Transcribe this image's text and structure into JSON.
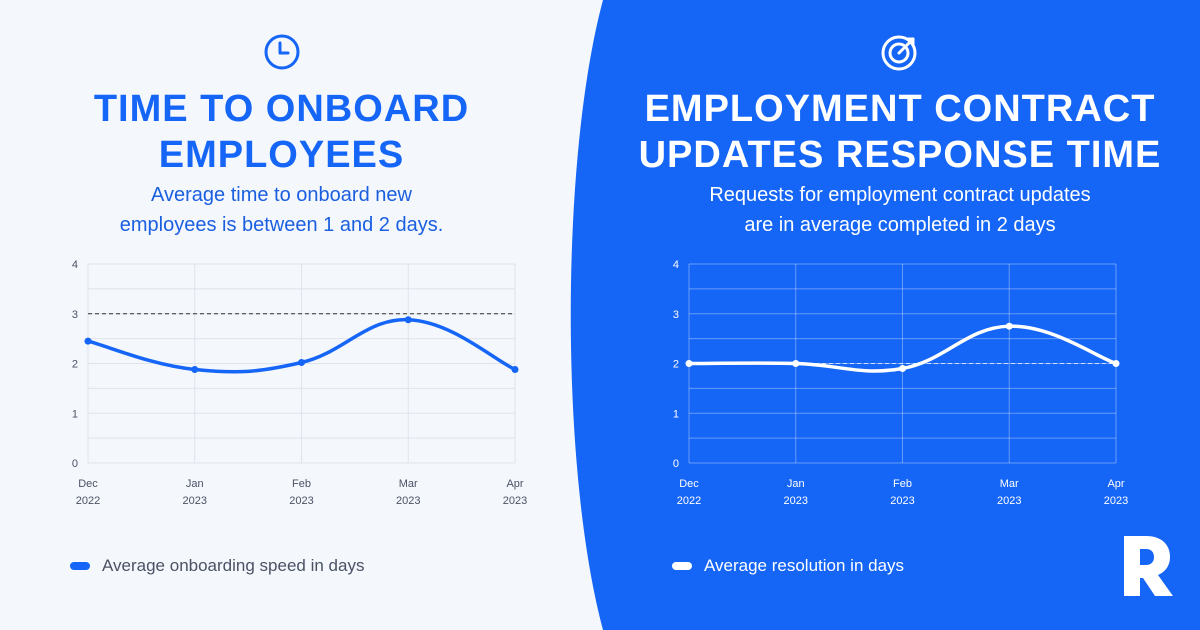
{
  "colors": {
    "brand": "#1565f6",
    "background": "#f4f7fc",
    "white": "#ffffff"
  },
  "left": {
    "icon": "clock-icon",
    "title_line1": "TIME TO ONBOARD",
    "title_line2": "EMPLOYEES",
    "subtitle_line1": "Average time to onboard new",
    "subtitle_line2": "employees is between 1 and 2 days.",
    "legend": "Average onboarding speed in days"
  },
  "right": {
    "icon": "target-icon",
    "title_line1": "EMPLOYMENT CONTRACT",
    "title_line2": "UPDATES RESPONSE TIME",
    "subtitle_line1": "Requests for employment contract updates",
    "subtitle_line2": "are in average completed in 2 days",
    "legend": "Average resolution in days"
  },
  "logo": "r-logo-icon",
  "chart_data": [
    {
      "type": "line",
      "categories": [
        [
          "Dec",
          "2022"
        ],
        [
          "Jan",
          "2023"
        ],
        [
          "Feb",
          "2023"
        ],
        [
          "Mar",
          "2023"
        ],
        [
          "Apr",
          "2023"
        ]
      ],
      "series": [
        {
          "name": "Average onboarding speed in days",
          "values": [
            2.45,
            1.88,
            2.02,
            2.88,
            1.88
          ]
        }
      ],
      "reference_line": 3,
      "ylim": [
        0,
        4
      ],
      "yticks": [
        "0",
        "1",
        "2",
        "3",
        "4"
      ],
      "grid": true,
      "smooth": true,
      "legend_position": "bottom-left",
      "color": "#1565f6"
    },
    {
      "type": "line",
      "categories": [
        [
          "Dec",
          "2022"
        ],
        [
          "Jan",
          "2023"
        ],
        [
          "Feb",
          "2023"
        ],
        [
          "Mar",
          "2023"
        ],
        [
          "Apr",
          "2023"
        ]
      ],
      "series": [
        {
          "name": "Average resolution in days",
          "values": [
            2.0,
            2.0,
            1.9,
            2.75,
            2.0
          ]
        }
      ],
      "reference_line": 2,
      "ylim": [
        0,
        4
      ],
      "yticks": [
        "0",
        "1",
        "2",
        "3",
        "4"
      ],
      "grid": true,
      "smooth": true,
      "legend_position": "bottom-left",
      "color": "#ffffff"
    }
  ]
}
